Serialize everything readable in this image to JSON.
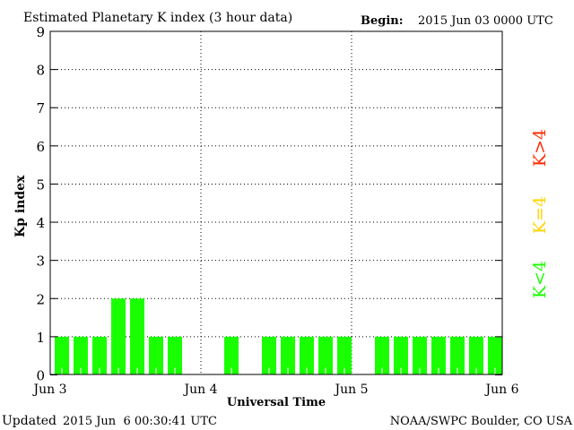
{
  "chart_data": {
    "type": "bar",
    "title": "Estimated Planetary K index (3 hour data)",
    "begin_label": "Begin:",
    "begin_value": "2015 Jun 03 0000 UTC",
    "xlabel": "Universal Time",
    "ylabel": "Kp index",
    "ylim": [
      0,
      9
    ],
    "yticks": [
      "0",
      "1",
      "2",
      "3",
      "4",
      "5",
      "6",
      "7",
      "8",
      "9"
    ],
    "xticks": [
      "Jun 3",
      "Jun 4",
      "Jun 5",
      "Jun 6"
    ],
    "grid": true,
    "bar_color": "#19ff00",
    "values": [
      1,
      1,
      1,
      2,
      2,
      1,
      1,
      0,
      0,
      1,
      0,
      1,
      1,
      1,
      1,
      1,
      0,
      1,
      1,
      1,
      1,
      1,
      1,
      1
    ],
    "legend": [
      {
        "label": "K>4",
        "color": "#ff2a00"
      },
      {
        "label": "K=4",
        "color": "#ffd400"
      },
      {
        "label": "K<4",
        "color": "#19ff00"
      }
    ]
  },
  "footer": {
    "updated_label": "Updated",
    "updated_value": "2015 Jun  6 00:30:41 UTC",
    "source": "NOAA/SWPC Boulder, CO USA"
  }
}
